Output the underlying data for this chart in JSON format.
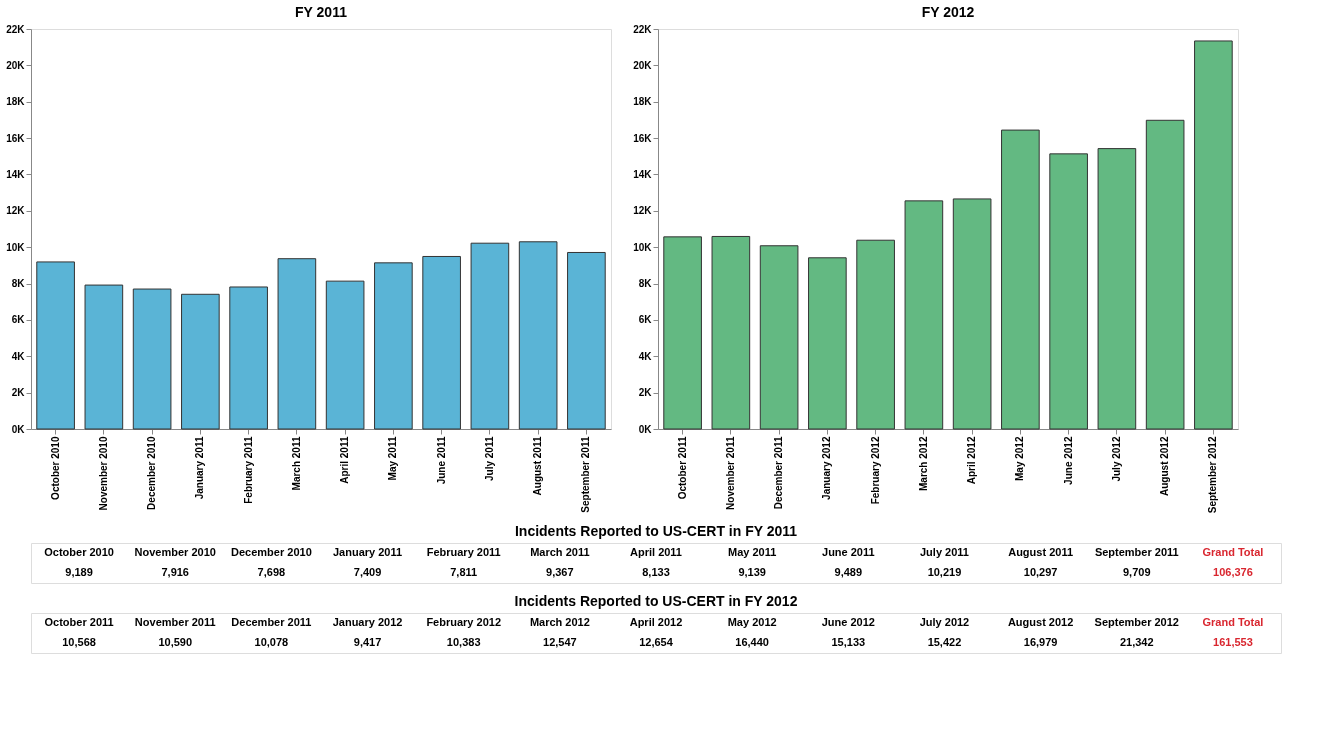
{
  "chart_data": [
    {
      "type": "bar",
      "title": "FY 2011",
      "categories": [
        "October 2010",
        "November 2010",
        "December 2010",
        "January 2011",
        "February 2011",
        "March 2011",
        "April 2011",
        "May 2011",
        "June 2011",
        "July 2011",
        "August 2011",
        "September 2011"
      ],
      "values": [
        9189,
        7916,
        7698,
        7409,
        7811,
        9367,
        8133,
        9139,
        9489,
        10219,
        10297,
        9709
      ],
      "color": "#5ab4d6",
      "ylim": [
        0,
        22000
      ],
      "yticks": [
        {
          "value": 0,
          "label": "0K"
        },
        {
          "value": 2000,
          "label": "2K"
        },
        {
          "value": 4000,
          "label": "4K"
        },
        {
          "value": 6000,
          "label": "6K"
        },
        {
          "value": 8000,
          "label": "8K"
        },
        {
          "value": 10000,
          "label": "10K"
        },
        {
          "value": 12000,
          "label": "12K"
        },
        {
          "value": 14000,
          "label": "14K"
        },
        {
          "value": 16000,
          "label": "16K"
        },
        {
          "value": 18000,
          "label": "18K"
        },
        {
          "value": 20000,
          "label": "20K"
        },
        {
          "value": 22000,
          "label": "22K"
        }
      ]
    },
    {
      "type": "bar",
      "title": "FY 2012",
      "categories": [
        "October 2011",
        "November 2011",
        "December 2011",
        "January 2012",
        "February 2012",
        "March 2012",
        "April 2012",
        "May 2012",
        "June 2012",
        "July 2012",
        "August 2012",
        "September 2012"
      ],
      "values": [
        10568,
        10590,
        10078,
        9417,
        10383,
        12547,
        12654,
        16440,
        15133,
        15422,
        16979,
        21342
      ],
      "color": "#63b982",
      "ylim": [
        0,
        22000
      ],
      "yticks": [
        {
          "value": 0,
          "label": "0K"
        },
        {
          "value": 2000,
          "label": "2K"
        },
        {
          "value": 4000,
          "label": "4K"
        },
        {
          "value": 6000,
          "label": "6K"
        },
        {
          "value": 8000,
          "label": "8K"
        },
        {
          "value": 10000,
          "label": "10K"
        },
        {
          "value": 12000,
          "label": "12K"
        },
        {
          "value": 14000,
          "label": "14K"
        },
        {
          "value": 16000,
          "label": "16K"
        },
        {
          "value": 18000,
          "label": "18K"
        },
        {
          "value": 20000,
          "label": "20K"
        },
        {
          "value": 22000,
          "label": "22K"
        }
      ]
    },
    {
      "type": "other",
      "value_labels": [
        "9,189",
        "7,916",
        "7,698",
        "7,409",
        "7,811",
        "9,367",
        "8,133",
        "9,139",
        "9,489",
        "10,219",
        "10,297",
        "9,709",
        "106,376"
      ],
      "title": "Incidents Reported to US-CERT in FY 2011",
      "categories": [
        "October 2010",
        "November 2010",
        "December 2010",
        "January 2011",
        "February 2011",
        "March 2011",
        "April 2011",
        "May 2011",
        "June 2011",
        "July 2011",
        "August 2011",
        "September 2011",
        "Grand Total"
      ],
      "values": [
        9189,
        7916,
        7698,
        7409,
        7811,
        9367,
        8133,
        9139,
        9489,
        10219,
        10297,
        9709,
        106376
      ],
      "colors": [
        "#000000",
        "#000000",
        "#000000",
        "#000000",
        "#000000",
        "#000000",
        "#000000",
        "#000000",
        "#000000",
        "#000000",
        "#000000",
        "#000000",
        "#d9262f"
      ]
    },
    {
      "type": "other",
      "value_labels": [
        "10,568",
        "10,590",
        "10,078",
        "9,417",
        "10,383",
        "12,547",
        "12,654",
        "16,440",
        "15,133",
        "15,422",
        "16,979",
        "21,342",
        "161,553"
      ],
      "title": "Incidents Reported to US-CERT in FY 2012",
      "categories": [
        "October 2011",
        "November 2011",
        "December 2011",
        "January 2012",
        "February 2012",
        "March 2012",
        "April 2012",
        "May 2012",
        "June 2012",
        "July 2012",
        "August 2012",
        "September 2012",
        "Grand Total"
      ],
      "values": [
        10568,
        10590,
        10078,
        9417,
        10383,
        12547,
        12654,
        16440,
        15133,
        15422,
        16979,
        21342,
        161553
      ],
      "colors": [
        "#000000",
        "#000000",
        "#000000",
        "#000000",
        "#000000",
        "#000000",
        "#000000",
        "#000000",
        "#000000",
        "#000000",
        "#000000",
        "#000000",
        "#d9262f"
      ]
    }
  ]
}
